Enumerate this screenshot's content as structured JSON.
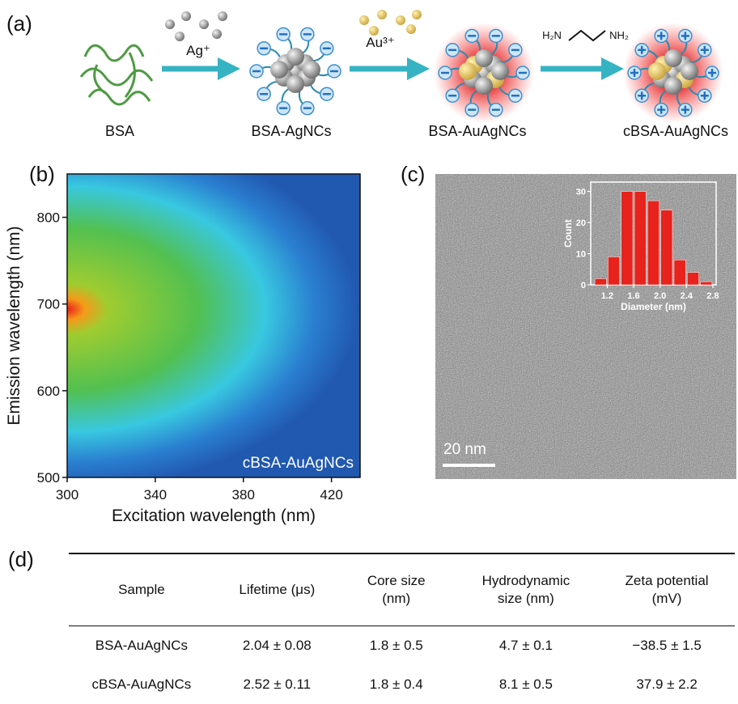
{
  "panel_labels": [
    "(a)",
    "(b)",
    "(c)",
    "(d)"
  ],
  "scheme": {
    "steps": [
      "BSA",
      "BSA-AgNCs",
      "BSA-AuAgNCs",
      "cBSA-AuAgNCs"
    ],
    "reagents": [
      "Ag⁺",
      "Au³⁺",
      "H₂N",
      "NH₂"
    ]
  },
  "tem": {
    "scale_bar": "20 nm"
  },
  "chart_data": [
    {
      "type": "heatmap",
      "xlabel": "Excitation wavelength (nm)",
      "ylabel": "Emission wavelength (nm)",
      "annotation": "cBSA-AuAgNCs",
      "xlim": [
        300,
        433
      ],
      "ylim": [
        500,
        850
      ],
      "xticks": [
        300,
        340,
        380,
        420
      ],
      "yticks": [
        500,
        600,
        700,
        800
      ]
    },
    {
      "type": "histogram",
      "xlabel": "Diameter (nm)",
      "ylabel": "Count",
      "color": "#e8221c",
      "bins": [
        1.0,
        1.2,
        1.4,
        1.6,
        1.8,
        2.0,
        2.2,
        2.4,
        2.6,
        2.8
      ],
      "counts": [
        2,
        9,
        30,
        30,
        27,
        24,
        8,
        4,
        1
      ],
      "xlim": [
        0.95,
        2.85
      ],
      "ylim": [
        0,
        33
      ],
      "xticks": [
        1.2,
        1.6,
        {
          "value": 2,
          "label": "2.0"
        },
        2.4,
        2.8
      ],
      "yticks": [
        0,
        10,
        20,
        30
      ]
    }
  ],
  "table": {
    "header": [
      "Sample",
      "Lifetime (μs)",
      "Core size (nm)",
      "Hydrodynamic size (nm)",
      "Zeta potential (mV)"
    ],
    "rows": [
      [
        "BSA-AuAgNCs",
        "2.04 ± 0.08",
        "1.8 ± 0.5",
        "4.7 ± 0.1",
        "−38.5 ± 1.5"
      ],
      [
        "cBSA-AuAgNCs",
        "2.52 ± 0.11",
        "1.8 ± 0.4",
        "8.1 ± 0.5",
        "37.9 ± 2.2"
      ]
    ]
  }
}
